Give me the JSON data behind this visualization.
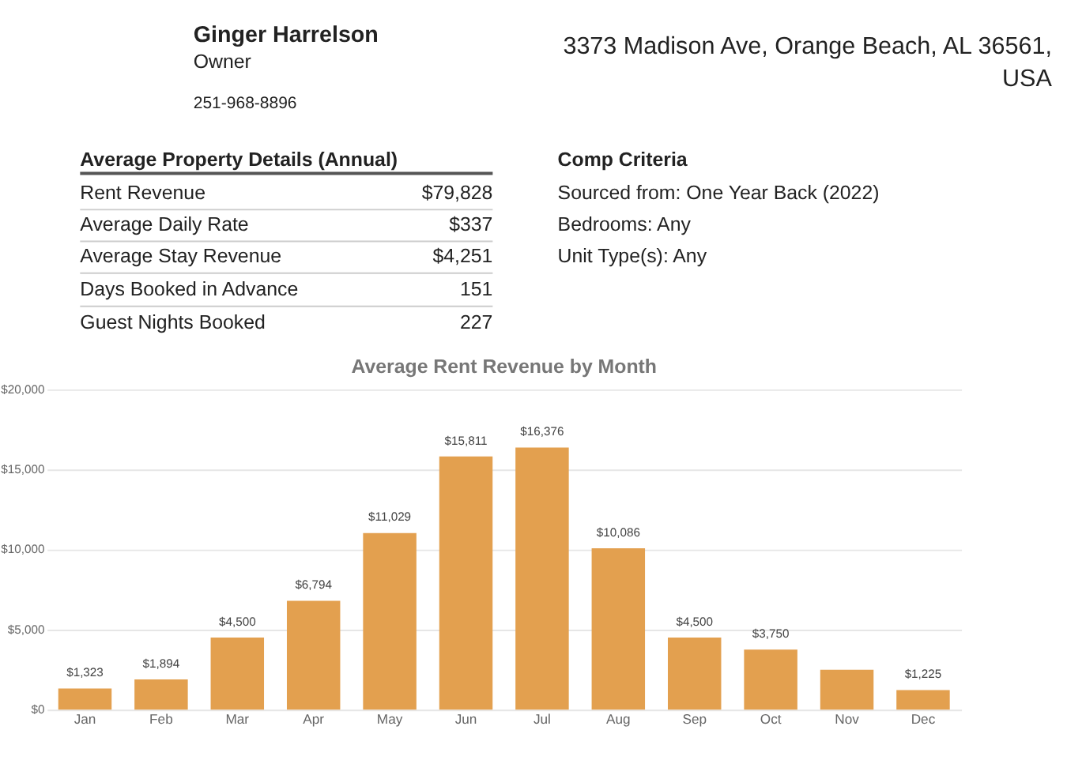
{
  "chart_data": {
    "type": "bar",
    "title": "Average Rent Revenue by Month",
    "categories": [
      "Jan",
      "Feb",
      "Mar",
      "Apr",
      "May",
      "Jun",
      "Jul",
      "Aug",
      "Sep",
      "Oct",
      "Nov",
      "Dec"
    ],
    "values": [
      1323,
      1894,
      4500,
      6794,
      11029,
      15811,
      16376,
      10086,
      4500,
      3750,
      2500,
      1225
    ],
    "value_labels": [
      "$1,323",
      "$1,894",
      "$4,500",
      "$6,794",
      "$11,029",
      "$15,811",
      "$16,376",
      "$10,086",
      "$4,500",
      "$3,750",
      null,
      "$1,225"
    ],
    "color": "#e3a04f",
    "ylim": [
      0,
      20000
    ],
    "yticks": [
      {
        "value": 0,
        "label": "$0"
      },
      {
        "value": 5000,
        "label": "$5,000"
      },
      {
        "value": 10000,
        "label": "$10,000"
      },
      {
        "value": 15000,
        "label": "$15,000"
      },
      {
        "value": 20000,
        "label": "$20,000"
      }
    ],
    "grid": "y",
    "annotations": [
      "Ginger Harrelson",
      "Owner",
      "251-968-8896",
      "3373 Madison Ave, Orange Beach, AL 36561, USA",
      "Average Property Details (Annual)",
      "Rent Revenue",
      "$79,828",
      "Average Daily Rate",
      "$337",
      "Average Stay Revenue",
      "$4,251",
      "Days Booked in Advance",
      "151",
      "Guest Nights Booked",
      "227",
      "Comp Criteria",
      "Sourced from: One Year Back (2022)",
      "Bedrooms: Any",
      "Unit Type(s): Any"
    ]
  }
}
